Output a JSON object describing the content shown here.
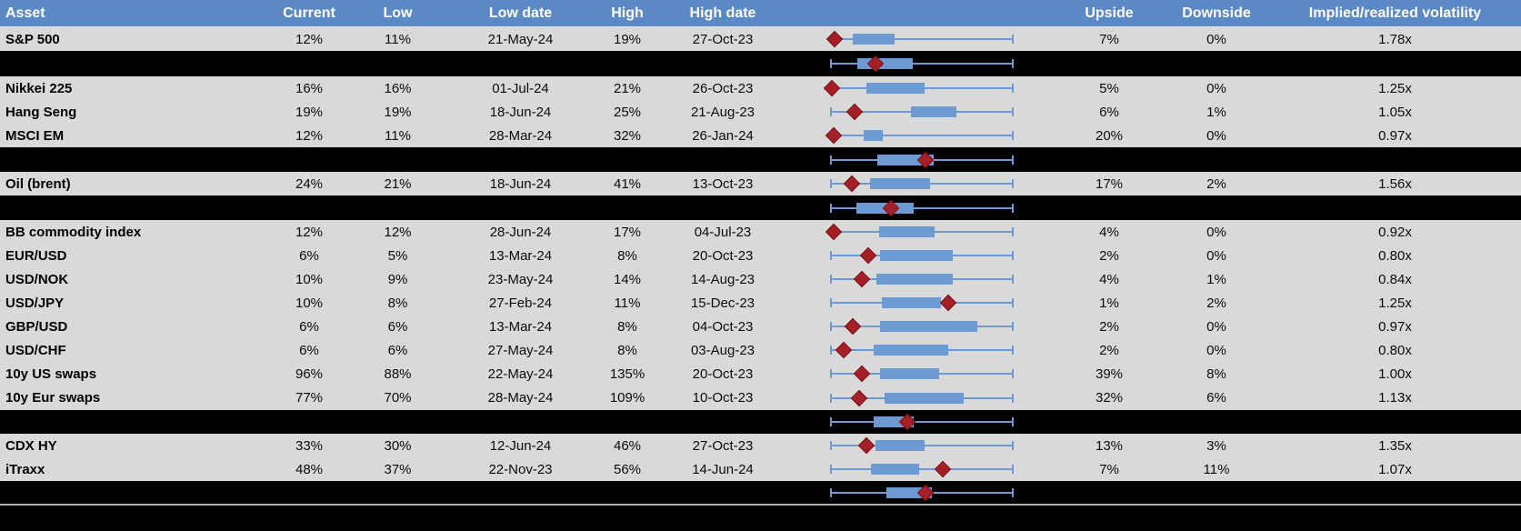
{
  "palette": {
    "header_blue": "#5B89C6",
    "row_gray": "#D9D9D9",
    "separator_black": "#000000",
    "box_blue": "#6D9AD3",
    "diamond_red": "#A42026",
    "divider_gray": "#AFAFAF"
  },
  "header": {
    "asset": "Asset",
    "current": "Current",
    "low": "Low",
    "low_date": "Low date",
    "high": "High",
    "high_date": "High date",
    "upside": "Upside",
    "downside": "Downside",
    "impl_real": "Implied/realized volatility"
  },
  "rows": [
    {
      "kind": "data",
      "asset": "S&P 500",
      "current": "12%",
      "low": "11%",
      "low_date": "21-May-24",
      "high": "19%",
      "high_date": "27-Oct-23",
      "upside": "7%",
      "downside": "0%",
      "impl_real": "1.78x",
      "plot": {
        "diamond": 0.025,
        "box": [
          0.124,
          0.351
        ],
        "whisker": [
          0,
          1
        ]
      }
    },
    {
      "kind": "separator",
      "plot": {
        "diamond": 0.248,
        "box": [
          0.15,
          0.45
        ],
        "whisker": [
          0,
          1
        ]
      }
    },
    {
      "kind": "data",
      "asset": "Nikkei 225",
      "current": "16%",
      "low": "16%",
      "low_date": "01-Jul-24",
      "high": "21%",
      "high_date": "26-Oct-23",
      "upside": "5%",
      "downside": "0%",
      "impl_real": "1.25x",
      "plot": {
        "diamond": 0.01,
        "box": [
          0.198,
          0.515
        ],
        "whisker": [
          0,
          1
        ]
      }
    },
    {
      "kind": "data",
      "asset": "Hang Seng",
      "current": "19%",
      "low": "19%",
      "low_date": "18-Jun-24",
      "high": "25%",
      "high_date": "21-Aug-23",
      "upside": "6%",
      "downside": "1%",
      "impl_real": "1.05x",
      "plot": {
        "diamond": 0.134,
        "box": [
          0.441,
          0.688
        ],
        "whisker": [
          0,
          1
        ]
      }
    },
    {
      "kind": "data",
      "asset": "MSCI EM",
      "current": "12%",
      "low": "11%",
      "low_date": "28-Mar-24",
      "high": "32%",
      "high_date": "26-Jan-24",
      "upside": "20%",
      "downside": "0%",
      "impl_real": "0.97x",
      "plot": {
        "diamond": 0.02,
        "box": [
          0.183,
          0.287
        ],
        "whisker": [
          0,
          1
        ]
      }
    },
    {
      "kind": "separator",
      "plot": {
        "diamond": 0.52,
        "box": [
          0.257,
          0.564
        ],
        "whisker": [
          0,
          1
        ]
      }
    },
    {
      "kind": "data",
      "asset": "Oil (brent)",
      "current": "24%",
      "low": "21%",
      "low_date": "18-Jun-24",
      "high": "41%",
      "high_date": "13-Oct-23",
      "upside": "17%",
      "downside": "2%",
      "impl_real": "1.56x",
      "plot": {
        "diamond": 0.119,
        "box": [
          0.218,
          0.545
        ],
        "whisker": [
          0,
          1
        ]
      }
    },
    {
      "kind": "separator",
      "plot": {
        "diamond": 0.332,
        "box": [
          0.144,
          0.455
        ],
        "whisker": [
          0,
          1
        ]
      }
    },
    {
      "kind": "data",
      "asset": "BB commodity index",
      "current": "12%",
      "low": "12%",
      "low_date": "28-Jun-24",
      "high": "17%",
      "high_date": "04-Jul-23",
      "upside": "4%",
      "downside": "0%",
      "impl_real": "0.92x",
      "plot": {
        "diamond": 0.02,
        "box": [
          0.267,
          0.569
        ],
        "whisker": [
          0,
          1
        ]
      }
    },
    {
      "kind": "data",
      "asset": "EUR/USD",
      "current": "6%",
      "low": "5%",
      "low_date": "13-Mar-24",
      "high": "8%",
      "high_date": "20-Oct-23",
      "upside": "2%",
      "downside": "0%",
      "impl_real": "0.80x",
      "plot": {
        "diamond": 0.208,
        "box": [
          0.272,
          0.668
        ],
        "whisker": [
          0,
          1
        ]
      }
    },
    {
      "kind": "data",
      "asset": "USD/NOK",
      "current": "10%",
      "low": "9%",
      "low_date": "23-May-24",
      "high": "14%",
      "high_date": "14-Aug-23",
      "upside": "4%",
      "downside": "1%",
      "impl_real": "0.84x",
      "plot": {
        "diamond": 0.173,
        "box": [
          0.252,
          0.668
        ],
        "whisker": [
          0,
          1
        ]
      }
    },
    {
      "kind": "data",
      "asset": "USD/JPY",
      "current": "10%",
      "low": "8%",
      "low_date": "27-Feb-24",
      "high": "11%",
      "high_date": "15-Dec-23",
      "upside": "1%",
      "downside": "2%",
      "impl_real": "1.25x",
      "plot": {
        "diamond": 0.644,
        "box": [
          0.282,
          0.604
        ],
        "whisker": [
          0,
          1
        ]
      }
    },
    {
      "kind": "data",
      "asset": "GBP/USD",
      "current": "6%",
      "low": "6%",
      "low_date": "13-Mar-24",
      "high": "8%",
      "high_date": "04-Oct-23",
      "upside": "2%",
      "downside": "0%",
      "impl_real": "0.97x",
      "plot": {
        "diamond": 0.124,
        "box": [
          0.272,
          0.802
        ],
        "whisker": [
          0,
          1
        ]
      }
    },
    {
      "kind": "data",
      "asset": "USD/CHF",
      "current": "6%",
      "low": "6%",
      "low_date": "27-May-24",
      "high": "8%",
      "high_date": "03-Aug-23",
      "upside": "2%",
      "downside": "0%",
      "impl_real": "0.80x",
      "plot": {
        "diamond": 0.074,
        "box": [
          0.238,
          0.644
        ],
        "whisker": [
          0,
          1
        ]
      }
    },
    {
      "kind": "data",
      "asset": "10y US swaps",
      "current": "96%",
      "low": "88%",
      "low_date": "22-May-24",
      "high": "135%",
      "high_date": "20-Oct-23",
      "upside": "39%",
      "downside": "8%",
      "impl_real": "1.00x",
      "plot": {
        "diamond": 0.173,
        "box": [
          0.272,
          0.594
        ],
        "whisker": [
          0,
          1
        ]
      }
    },
    {
      "kind": "data",
      "asset": "10y Eur swaps",
      "current": "77%",
      "low": "70%",
      "low_date": "28-May-24",
      "high": "109%",
      "high_date": "10-Oct-23",
      "upside": "32%",
      "downside": "6%",
      "impl_real": "1.13x",
      "plot": {
        "diamond": 0.158,
        "box": [
          0.297,
          0.728
        ],
        "whisker": [
          0,
          1
        ]
      }
    },
    {
      "kind": "separator",
      "plot": {
        "diamond": 0.421,
        "box": [
          0.238,
          0.455
        ],
        "whisker": [
          0,
          1
        ]
      }
    },
    {
      "kind": "data",
      "asset": "CDX HY",
      "current": "33%",
      "low": "30%",
      "low_date": "12-Jun-24",
      "high": "46%",
      "high_date": "27-Oct-23",
      "upside": "13%",
      "downside": "3%",
      "impl_real": "1.35x",
      "plot": {
        "diamond": 0.198,
        "box": [
          0.248,
          0.515
        ],
        "whisker": [
          0,
          1
        ]
      }
    },
    {
      "kind": "data",
      "asset": "iTraxx",
      "current": "48%",
      "low": "37%",
      "low_date": "22-Nov-23",
      "high": "56%",
      "high_date": "14-Jun-24",
      "upside": "7%",
      "downside": "11%",
      "impl_real": "1.07x",
      "plot": {
        "diamond": 0.614,
        "box": [
          0.223,
          0.485
        ],
        "whisker": [
          0,
          1
        ]
      }
    },
    {
      "kind": "separator",
      "plot": {
        "diamond": 0.52,
        "box": [
          0.307,
          0.554
        ],
        "whisker": [
          0,
          1
        ]
      }
    },
    {
      "kind": "footer"
    }
  ],
  "chart_data": {
    "type": "table",
    "columns": [
      "Asset",
      "Current",
      "Low",
      "Low date",
      "High",
      "High date",
      "Upside",
      "Downside",
      "Implied/realized volatility"
    ],
    "rows": [
      [
        "S&P 500",
        "12%",
        "11%",
        "21-May-24",
        "19%",
        "27-Oct-23",
        "7%",
        "0%",
        "1.78x"
      ],
      [
        "Nikkei 225",
        "16%",
        "16%",
        "01-Jul-24",
        "21%",
        "26-Oct-23",
        "5%",
        "0%",
        "1.25x"
      ],
      [
        "Hang Seng",
        "19%",
        "19%",
        "18-Jun-24",
        "25%",
        "21-Aug-23",
        "6%",
        "1%",
        "1.05x"
      ],
      [
        "MSCI EM",
        "12%",
        "11%",
        "28-Mar-24",
        "32%",
        "26-Jan-24",
        "20%",
        "0%",
        "0.97x"
      ],
      [
        "Oil (brent)",
        "24%",
        "21%",
        "18-Jun-24",
        "41%",
        "13-Oct-23",
        "17%",
        "2%",
        "1.56x"
      ],
      [
        "BB commodity index",
        "12%",
        "12%",
        "28-Jun-24",
        "17%",
        "04-Jul-23",
        "4%",
        "0%",
        "0.92x"
      ],
      [
        "EUR/USD",
        "6%",
        "5%",
        "13-Mar-24",
        "8%",
        "20-Oct-23",
        "2%",
        "0%",
        "0.80x"
      ],
      [
        "USD/NOK",
        "10%",
        "9%",
        "23-May-24",
        "14%",
        "14-Aug-23",
        "4%",
        "1%",
        "0.84x"
      ],
      [
        "USD/JPY",
        "10%",
        "8%",
        "27-Feb-24",
        "11%",
        "15-Dec-23",
        "1%",
        "2%",
        "1.25x"
      ],
      [
        "GBP/USD",
        "6%",
        "6%",
        "13-Mar-24",
        "8%",
        "04-Oct-23",
        "2%",
        "0%",
        "0.97x"
      ],
      [
        "USD/CHF",
        "6%",
        "6%",
        "27-May-24",
        "8%",
        "03-Aug-23",
        "2%",
        "0%",
        "0.80x"
      ],
      [
        "10y US swaps",
        "96%",
        "88%",
        "22-May-24",
        "135%",
        "20-Oct-23",
        "39%",
        "8%",
        "1.00x"
      ],
      [
        "10y Eur swaps",
        "77%",
        "70%",
        "28-May-24",
        "109%",
        "10-Oct-23",
        "32%",
        "6%",
        "1.13x"
      ],
      [
        "CDX HY",
        "33%",
        "30%",
        "12-Jun-24",
        "46%",
        "27-Oct-23",
        "13%",
        "3%",
        "1.35x"
      ],
      [
        "iTraxx",
        "48%",
        "37%",
        "22-Nov-23",
        "56%",
        "14-Jun-24",
        "7%",
        "11%",
        "1.07x"
      ]
    ],
    "boxplots": {
      "note": "Per-row mini box plots; positions normalized 0-1 across the whisker span (left tick to right tick). 'diamond' = current level marker (red diamond), 'box' = interquartile band (blue).",
      "series": [
        {
          "asset": "S&P 500",
          "diamond": 0.025,
          "box": [
            0.124,
            0.351
          ]
        },
        {
          "asset": "(group aggregate 1)",
          "diamond": 0.248,
          "box": [
            0.15,
            0.45
          ]
        },
        {
          "asset": "Nikkei 225",
          "diamond": 0.01,
          "box": [
            0.198,
            0.515
          ]
        },
        {
          "asset": "Hang Seng",
          "diamond": 0.134,
          "box": [
            0.441,
            0.688
          ]
        },
        {
          "asset": "MSCI EM",
          "diamond": 0.02,
          "box": [
            0.183,
            0.287
          ]
        },
        {
          "asset": "(group aggregate 2)",
          "diamond": 0.52,
          "box": [
            0.257,
            0.564
          ]
        },
        {
          "asset": "Oil (brent)",
          "diamond": 0.119,
          "box": [
            0.218,
            0.545
          ]
        },
        {
          "asset": "(group aggregate 3)",
          "diamond": 0.332,
          "box": [
            0.144,
            0.455
          ]
        },
        {
          "asset": "BB commodity index",
          "diamond": 0.02,
          "box": [
            0.267,
            0.569
          ]
        },
        {
          "asset": "EUR/USD",
          "diamond": 0.208,
          "box": [
            0.272,
            0.668
          ]
        },
        {
          "asset": "USD/NOK",
          "diamond": 0.173,
          "box": [
            0.252,
            0.668
          ]
        },
        {
          "asset": "USD/JPY",
          "diamond": 0.644,
          "box": [
            0.282,
            0.604
          ]
        },
        {
          "asset": "GBP/USD",
          "diamond": 0.124,
          "box": [
            0.272,
            0.802
          ]
        },
        {
          "asset": "USD/CHF",
          "diamond": 0.074,
          "box": [
            0.238,
            0.644
          ]
        },
        {
          "asset": "10y US swaps",
          "diamond": 0.173,
          "box": [
            0.272,
            0.594
          ]
        },
        {
          "asset": "10y Eur swaps",
          "diamond": 0.158,
          "box": [
            0.297,
            0.728
          ]
        },
        {
          "asset": "(group aggregate 4)",
          "diamond": 0.421,
          "box": [
            0.238,
            0.455
          ]
        },
        {
          "asset": "CDX HY",
          "diamond": 0.198,
          "box": [
            0.248,
            0.515
          ]
        },
        {
          "asset": "iTraxx",
          "diamond": 0.614,
          "box": [
            0.223,
            0.485
          ]
        },
        {
          "asset": "(group aggregate 5)",
          "diamond": 0.52,
          "box": [
            0.307,
            0.554
          ]
        }
      ]
    }
  }
}
